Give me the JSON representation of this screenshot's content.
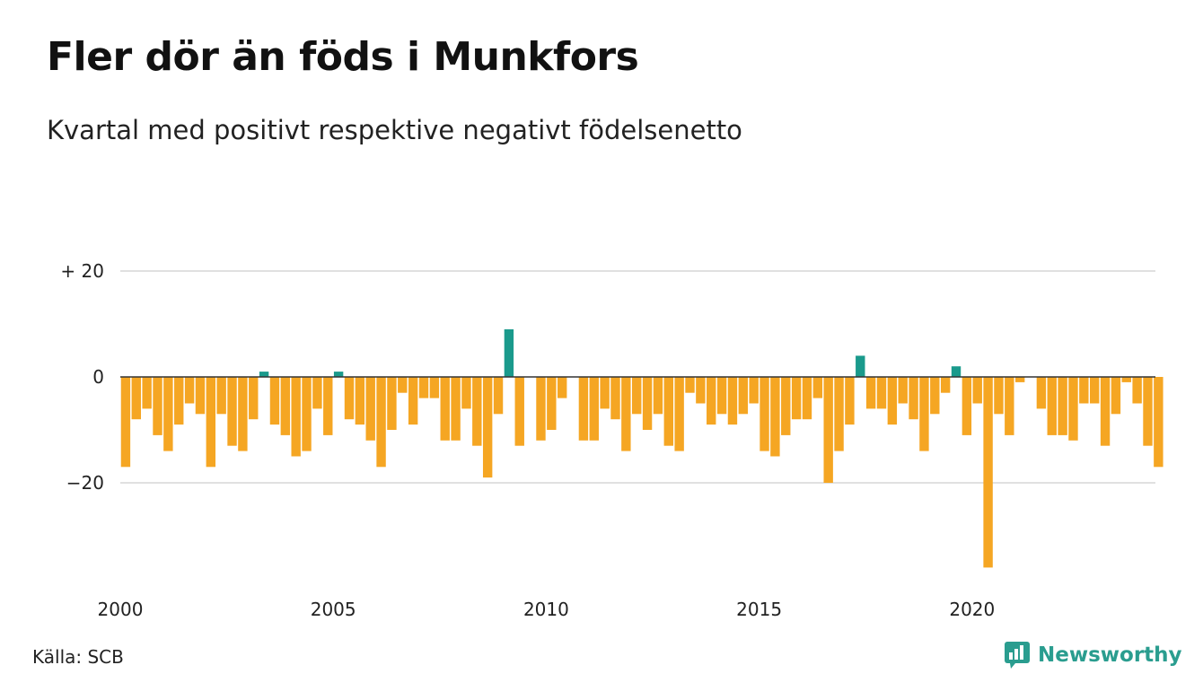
{
  "title": "Fler dör än föds i Munkfors",
  "subtitle": "Kvartal med positivt respektive negativt födelsenetto",
  "source": "Källa: SCB",
  "brand": {
    "name": "Newsworthy",
    "icon": "newsworthy-logo-icon",
    "color": "#2a9d8f"
  },
  "colors": {
    "positive": "#1a9a8c",
    "negative": "#f5a623",
    "grid": "#e0e0e0",
    "zero_line": "#333333"
  },
  "chart_data": {
    "type": "bar",
    "title": "Fler dör än föds i Munkfors",
    "subtitle": "Kvartal med positivt respektive negativt födelsenetto",
    "xlabel": "",
    "ylabel": "",
    "x_start": 2000,
    "periods_per_year": 4,
    "ylim": [
      -36,
      20
    ],
    "y_ticks": [
      {
        "value": 20,
        "label": "+ 20"
      },
      {
        "value": 0,
        "label": "0"
      },
      {
        "value": -20,
        "label": "−20"
      }
    ],
    "x_ticks": [
      {
        "value": 2000,
        "label": "2000"
      },
      {
        "value": 2005,
        "label": "2005"
      },
      {
        "value": 2010,
        "label": "2010"
      },
      {
        "value": 2015,
        "label": "2015"
      },
      {
        "value": 2020,
        "label": "2020"
      }
    ],
    "grid": true,
    "legend": "none",
    "values": [
      -17,
      -8,
      -6,
      -11,
      -14,
      -9,
      -5,
      -7,
      -17,
      -7,
      -13,
      -14,
      -8,
      1,
      -9,
      -11,
      -15,
      -14,
      -6,
      -11,
      1,
      -8,
      -9,
      -12,
      -17,
      -10,
      -3,
      -9,
      -4,
      -4,
      -12,
      -12,
      -6,
      -13,
      -19,
      -7,
      9,
      -13,
      0,
      -12,
      -10,
      -4,
      0,
      -12,
      -12,
      -6,
      -8,
      -14,
      -7,
      -10,
      -7,
      -13,
      -14,
      -3,
      -5,
      -9,
      -7,
      -9,
      -7,
      -5,
      -14,
      -15,
      -11,
      -8,
      -8,
      -4,
      -20,
      -14,
      -9,
      4,
      -6,
      -6,
      -9,
      -5,
      -8,
      -14,
      -7,
      -3,
      2,
      -11,
      -5,
      -36,
      -7,
      -11,
      -1,
      0,
      -6,
      -11,
      -11,
      -12,
      -5,
      -5,
      -13,
      -7,
      -1,
      -5,
      -13,
      -17
    ]
  }
}
